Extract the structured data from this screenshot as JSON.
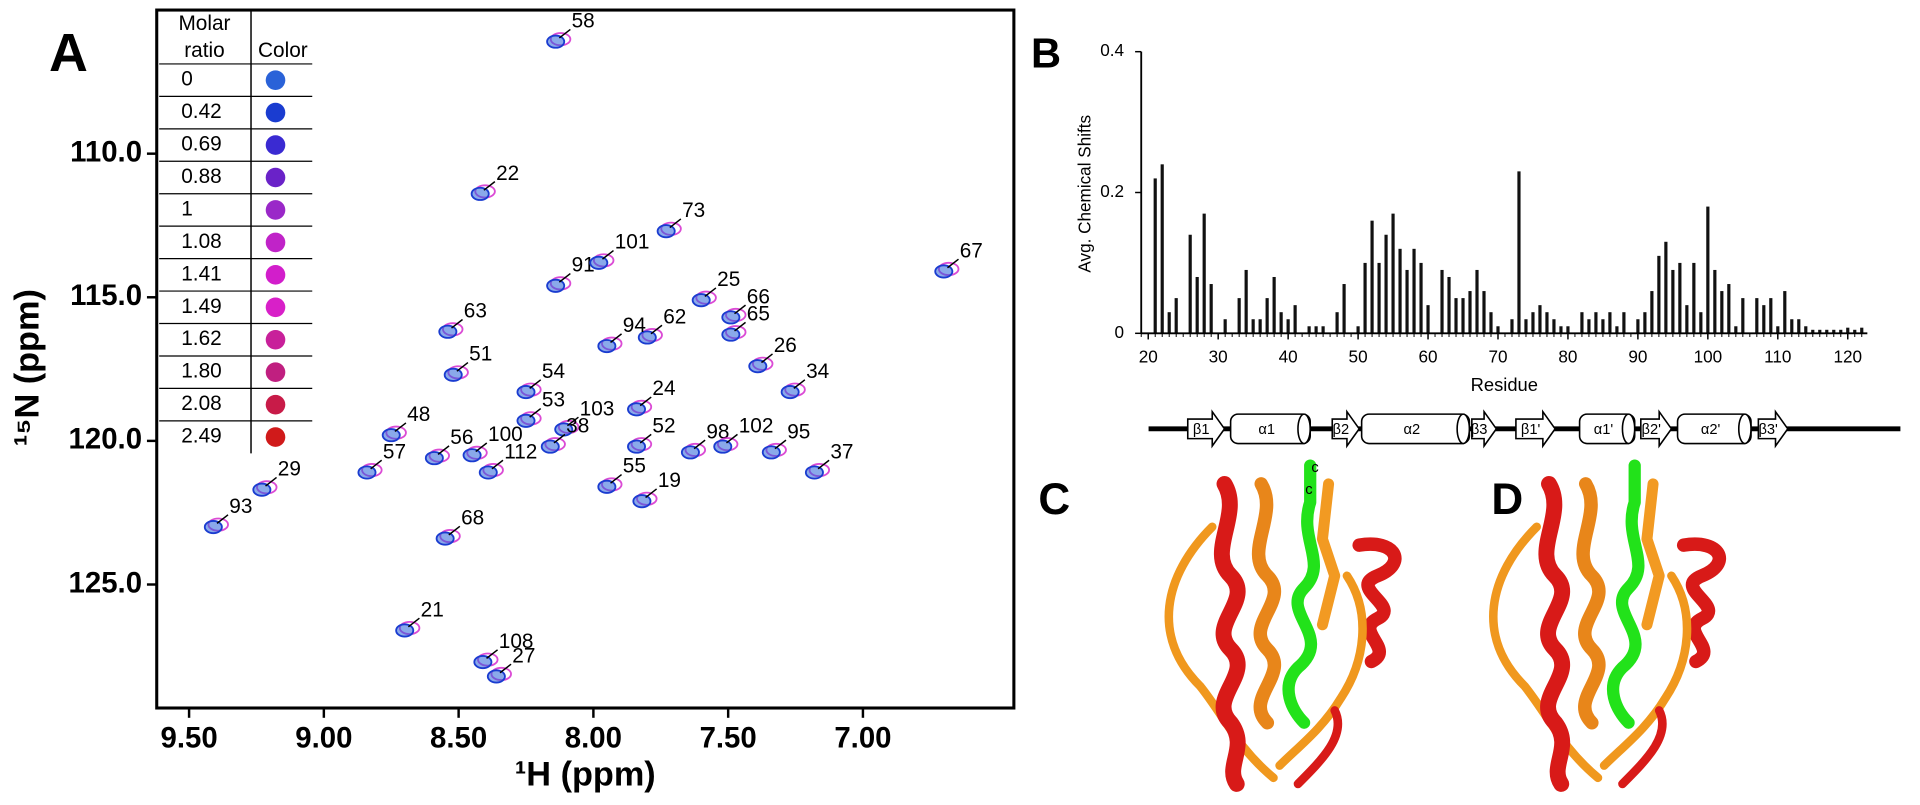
{
  "panel_labels": [
    "A",
    "B",
    "C",
    "D"
  ],
  "structure_annotations": [
    "c",
    "c"
  ],
  "chart_data": [
    {
      "type": "scatter",
      "xlabel": "¹H (ppm)",
      "ylabel": "¹⁵N (ppm)",
      "xlim": [
        9.62,
        6.44
      ],
      "ylim": [
        105.0,
        129.3
      ],
      "xticks": [
        {
          "value": 9.5,
          "label": "9.50"
        },
        {
          "value": 9.0,
          "label": "9.00"
        },
        {
          "value": 8.5,
          "label": "8.50"
        },
        {
          "value": 8.0,
          "label": "8.00"
        },
        {
          "value": 7.5,
          "label": "7.50"
        },
        {
          "value": 7.0,
          "label": "7.00"
        }
      ],
      "yticks": [
        {
          "value": 110,
          "label": "110.0"
        },
        {
          "value": 115,
          "label": "115.0"
        },
        {
          "value": 120,
          "label": "120.0"
        },
        {
          "value": 125,
          "label": "125.0"
        }
      ],
      "point_labels": [
        "58",
        "22",
        "73",
        "91",
        "101",
        "67",
        "25",
        "66",
        "65",
        "62",
        "94",
        "63",
        "26",
        "51",
        "34",
        "54",
        "24",
        "53",
        "103",
        "38",
        "48",
        "56",
        "100",
        "52",
        "98",
        "102",
        "95",
        "57",
        "112",
        "37",
        "29",
        "93",
        "55",
        "19",
        "68",
        "21",
        "108",
        "27"
      ],
      "x": [
        8.14,
        8.42,
        7.73,
        8.14,
        7.98,
        6.7,
        7.6,
        7.49,
        7.49,
        7.8,
        7.95,
        8.54,
        7.39,
        8.52,
        7.27,
        8.25,
        7.84,
        8.25,
        8.11,
        8.16,
        8.75,
        8.59,
        8.45,
        7.84,
        7.64,
        7.52,
        7.34,
        8.84,
        8.39,
        7.18,
        9.23,
        9.41,
        7.95,
        7.82,
        8.55,
        8.7,
        8.41,
        8.36
      ],
      "y": [
        106.1,
        111.4,
        112.7,
        114.6,
        113.8,
        114.1,
        115.1,
        115.7,
        116.3,
        116.4,
        116.7,
        116.2,
        117.4,
        117.7,
        118.3,
        118.3,
        118.9,
        119.3,
        119.6,
        120.2,
        119.8,
        120.6,
        120.5,
        120.2,
        120.4,
        120.2,
        120.4,
        121.1,
        121.1,
        121.1,
        121.7,
        123.0,
        121.6,
        122.1,
        123.4,
        126.6,
        127.7,
        128.2
      ],
      "legend": {
        "ratio_header": [
          "Molar",
          "ratio"
        ],
        "color_header": "Color",
        "rows": [
          {
            "label": "0",
            "color": "#2a62d8"
          },
          {
            "label": "0.42",
            "color": "#1a3cd0"
          },
          {
            "label": "0.69",
            "color": "#3a2ad2"
          },
          {
            "label": "0.88",
            "color": "#6a22c8"
          },
          {
            "label": "1",
            "color": "#9a28c8"
          },
          {
            "label": "1.08",
            "color": "#c023c8"
          },
          {
            "label": "1.41",
            "color": "#d21ecb"
          },
          {
            "label": "1.49",
            "color": "#d820c8"
          },
          {
            "label": "1.62",
            "color": "#c8209a"
          },
          {
            "label": "1.80",
            "color": "#c01f80"
          },
          {
            "label": "2.08",
            "color": "#c81b48"
          },
          {
            "label": "2.49",
            "color": "#d01a1a"
          }
        ]
      }
    },
    {
      "type": "bar",
      "xlabel": "Residue",
      "ylabel": "Avg. Chemical Shifts",
      "color": "#111111",
      "xlim": [
        19,
        122.8
      ],
      "ylim": [
        0,
        0.4
      ],
      "xticks": [
        20,
        30,
        40,
        50,
        60,
        70,
        80,
        90,
        100,
        110,
        120
      ],
      "yticks": [
        0,
        0.2,
        0.4
      ],
      "x": [
        21,
        22,
        23,
        24,
        25,
        26,
        27,
        28,
        29,
        30,
        31,
        32,
        33,
        34,
        35,
        36,
        37,
        38,
        39,
        40,
        41,
        42,
        43,
        44,
        45,
        46,
        47,
        48,
        49,
        50,
        51,
        52,
        53,
        54,
        55,
        56,
        57,
        58,
        59,
        60,
        61,
        62,
        63,
        64,
        65,
        66,
        67,
        68,
        69,
        70,
        71,
        72,
        73,
        74,
        75,
        76,
        77,
        78,
        79,
        80,
        81,
        82,
        83,
        84,
        85,
        86,
        87,
        88,
        89,
        90,
        91,
        92,
        93,
        94,
        95,
        96,
        97,
        98,
        99,
        100,
        101,
        102,
        103,
        104,
        105,
        106,
        107,
        108,
        109,
        110,
        111,
        112,
        113,
        114,
        115,
        116,
        117,
        118,
        119,
        120,
        121,
        122
      ],
      "values": [
        0.22,
        0.24,
        0.03,
        0.05,
        0,
        0.14,
        0.08,
        0.17,
        0.07,
        0,
        0.02,
        0,
        0.05,
        0.09,
        0.02,
        0.02,
        0.05,
        0.08,
        0.03,
        0.02,
        0.04,
        0,
        0.01,
        0.01,
        0.01,
        0,
        0.03,
        0.07,
        0,
        0.01,
        0.1,
        0.16,
        0.1,
        0.14,
        0.17,
        0.12,
        0.09,
        0.12,
        0.1,
        0.04,
        0,
        0.09,
        0.08,
        0.05,
        0.05,
        0.06,
        0.09,
        0.06,
        0.03,
        0.01,
        0,
        0.02,
        0.23,
        0.02,
        0.03,
        0.04,
        0.03,
        0.02,
        0.01,
        0.01,
        0,
        0.03,
        0.02,
        0.03,
        0.02,
        0.03,
        0.01,
        0.03,
        0,
        0.02,
        0.03,
        0.06,
        0.11,
        0.13,
        0.09,
        0.1,
        0.04,
        0.1,
        0.03,
        0.18,
        0.09,
        0.06,
        0.07,
        0.01,
        0.05,
        0,
        0.05,
        0.04,
        0.05,
        0.01,
        0.06,
        0.02,
        0.02,
        0.01,
        0.005,
        0.005,
        0.005,
        0.005,
        0.005,
        0.008,
        0.005,
        0.008
      ]
    }
  ],
  "secondary_structure": [
    "β1",
    "α1",
    "β2",
    "α2",
    "β3",
    "β1'",
    "α1'",
    "β2'",
    "α2'",
    "β3'"
  ]
}
